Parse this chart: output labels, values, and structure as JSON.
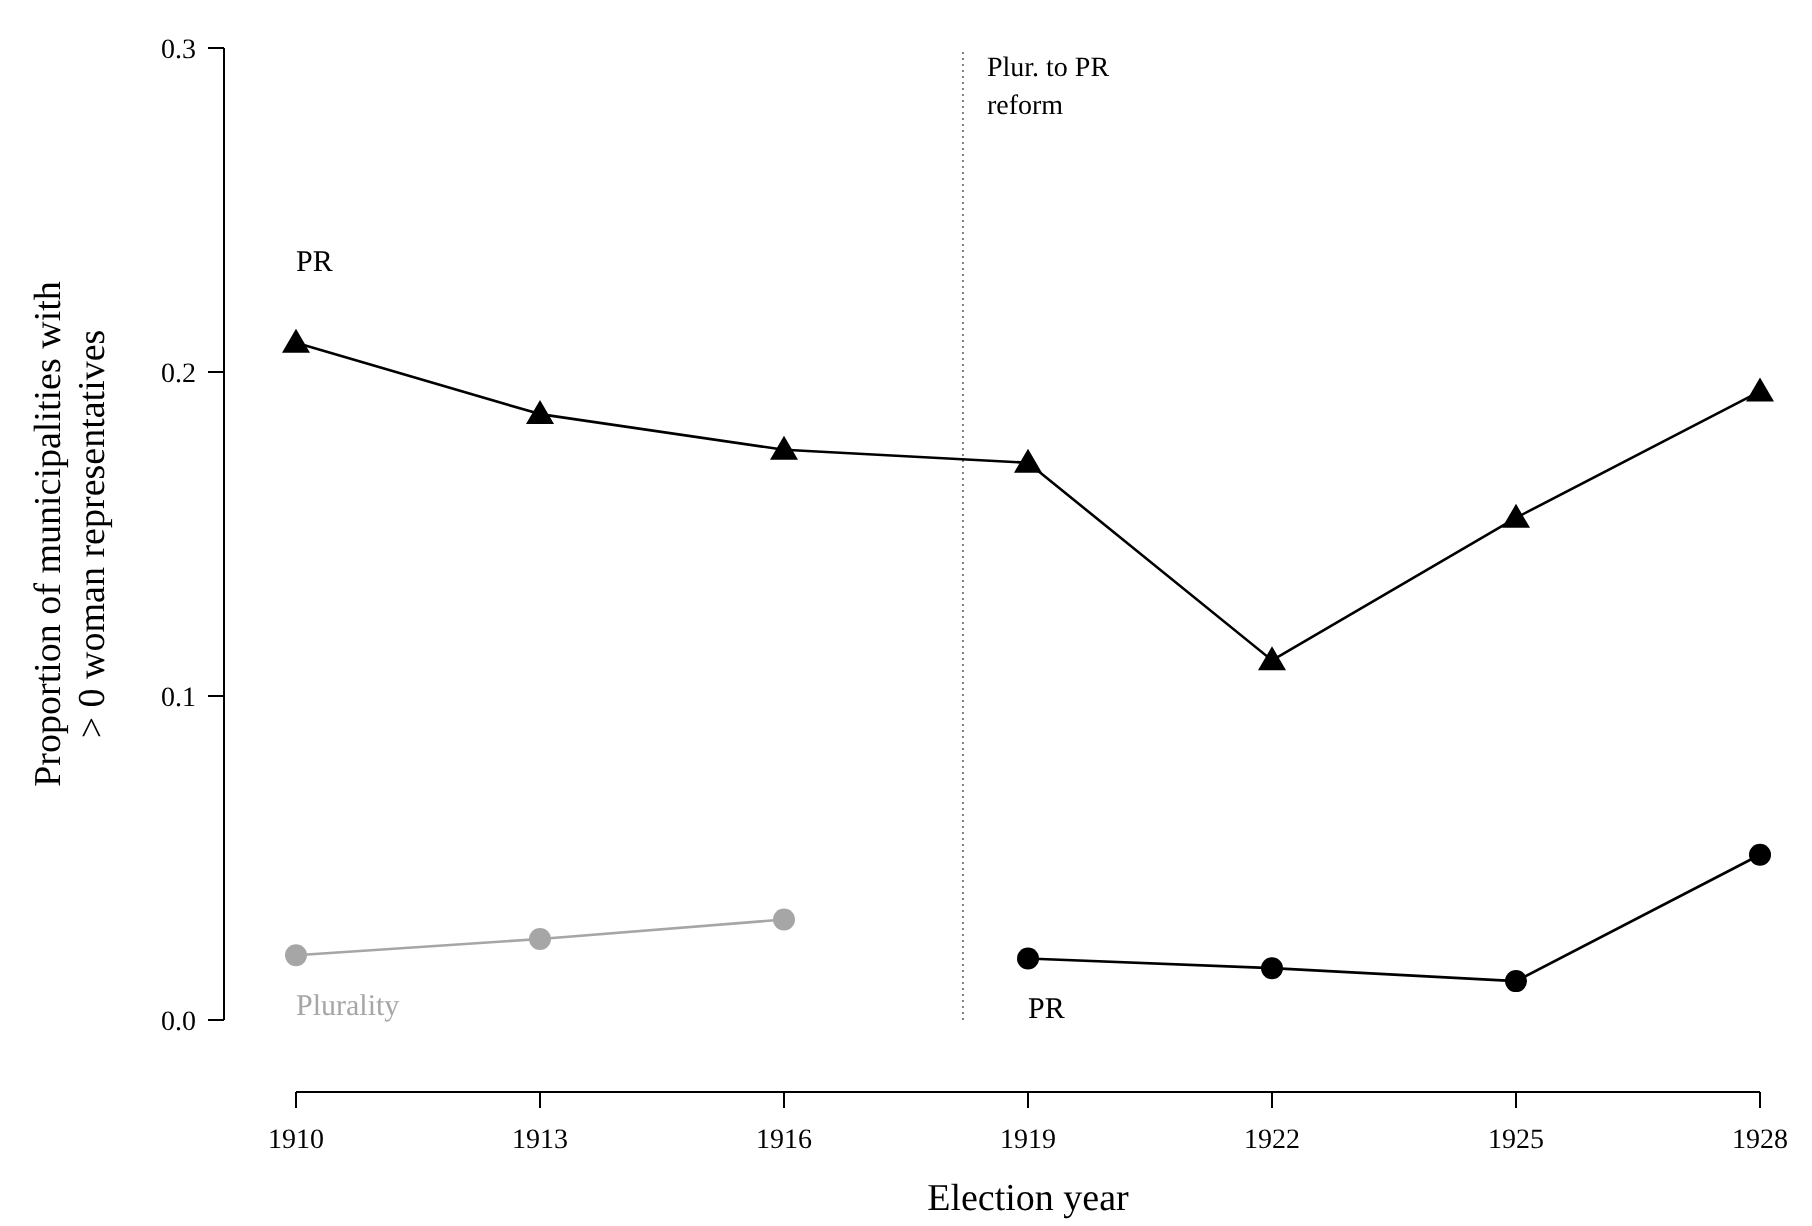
{
  "chart_data": {
    "type": "line",
    "xlabel": "Election year",
    "ylabel": "Proportion of municipalities with > 0 woman representatives",
    "xlim": [
      1910,
      1928
    ],
    "xticks": [
      1910,
      1913,
      1916,
      1919,
      1922,
      1925,
      1928
    ],
    "ylim": [
      0,
      0.3
    ],
    "yticks": [
      {
        "value": 0,
        "label": "0.0"
      },
      0.1,
      0.2,
      0.3
    ],
    "grid": false,
    "line_style": "solid",
    "series": [
      {
        "name": "PR",
        "color": "#000000",
        "marker": "triangle",
        "x": [
          1910,
          1913,
          1916,
          1919,
          1922,
          1925,
          1928
        ],
        "values": [
          0.209,
          0.187,
          0.176,
          0.172,
          0.111,
          0.155,
          0.194
        ]
      },
      {
        "name": "Plurality",
        "color": "#a6a6a6",
        "marker": "circle",
        "x": [
          1910,
          1913,
          1916
        ],
        "values": [
          0.02,
          0.025,
          0.031
        ]
      },
      {
        "name": "PR",
        "color": "#000000",
        "marker": "circle",
        "x": [
          1919,
          1922,
          1925,
          1928
        ],
        "values": [
          0.019,
          0.016,
          0.012,
          0.051
        ]
      }
    ],
    "ref_lines": [
      {
        "axis": "x",
        "value": 1918.2,
        "label": "Plur. to PR reform",
        "color": "#808080",
        "line_style": "dotted"
      }
    ]
  }
}
